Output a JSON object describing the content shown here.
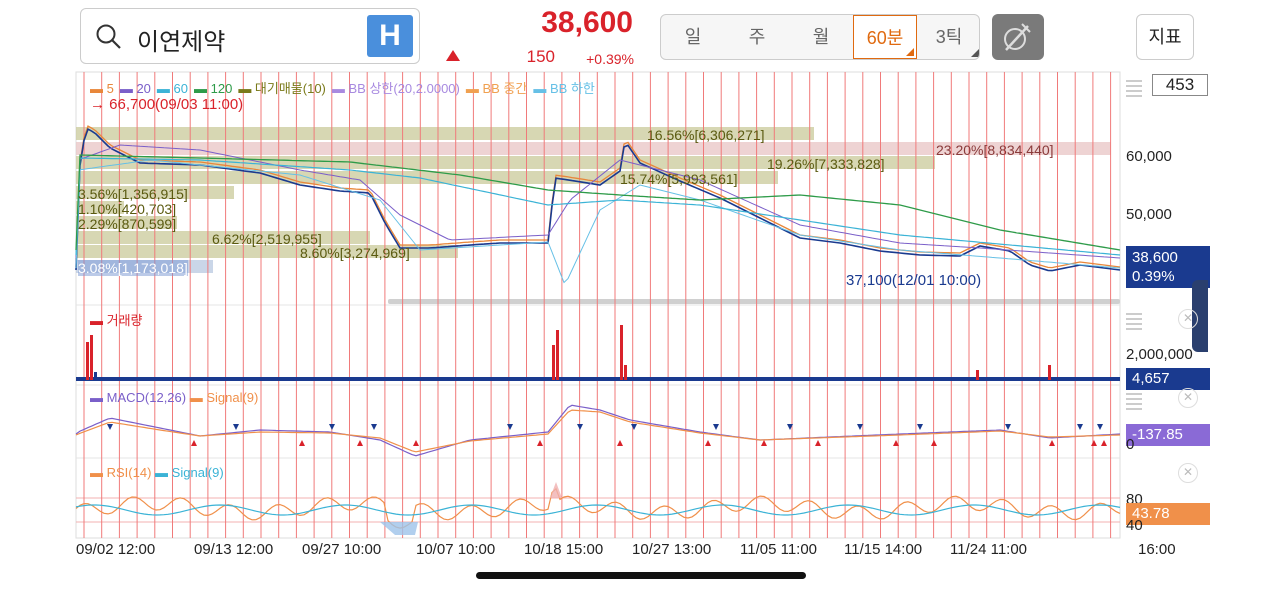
{
  "stock": {
    "name": "이연제약",
    "h_label": "H",
    "price": "38,600",
    "change": "150",
    "change_pct": "+0.39%"
  },
  "periods": [
    "일",
    "주",
    "월",
    "60분",
    "3틱"
  ],
  "selected_period": "60분",
  "indicator_button": "지표",
  "counter": "453",
  "legend_price": [
    {
      "label": "5",
      "color": "#e8873a"
    },
    {
      "label": "20",
      "color": "#7a5fc9"
    },
    {
      "label": "60",
      "color": "#3bb3d6"
    },
    {
      "label": "120",
      "color": "#2e9b49"
    },
    {
      "label": "대기매물(10)",
      "color": "#7a7a1a"
    },
    {
      "label": "BB 상한(20,2.0000)",
      "color": "#a88ae0"
    },
    {
      "label": "BB 중간",
      "color": "#f0a050"
    },
    {
      "label": "BB 하한",
      "color": "#66c0e6"
    }
  ],
  "high_marker": "66,700(09/03 11:00)",
  "low_marker": "37,100(12/01 10:00)",
  "volume_profile": [
    "16.56%[6,306,271]",
    "23.20%[8,834,440]",
    "19.26%[7,333,828]",
    "15.74%[5,993,561]",
    "3.56%[1,356,915]",
    "1.10%[420,703]",
    "2.29%[870,599]",
    "6.62%[2,519,955]",
    "8.60%[3,274,969]",
    "3.08%[1,173,018]"
  ],
  "price_axis": [
    "60,000",
    "50,000"
  ],
  "current_tag": {
    "price": "38,600",
    "pct": "0.39%"
  },
  "volume_panel": {
    "label": "거래량",
    "axis": "2,000,000",
    "tag": "4,657"
  },
  "macd_panel": {
    "label1": "MACD(12,26)",
    "label2": "Signal(9)",
    "axis": "0",
    "tag": "-137.85"
  },
  "rsi_panel": {
    "label1": "RSI(14)",
    "label2": "Signal(9)",
    "axis_hi": "80",
    "axis_lo": "40",
    "tag": "43.78"
  },
  "x_ticks": [
    "09/02 12:00",
    "09/13 12:00",
    "09/27 10:00",
    "10/07 10:00",
    "10/18 15:00",
    "10/27 13:00",
    "11/05 11:00",
    "11/15 14:00",
    "11/24 11:00",
    "16:00"
  ],
  "colors": {
    "up": "#d9222a",
    "down": "#1a3a8f",
    "accent": "#e06a10",
    "tag_blue": "#1a3a8f",
    "tag_purple": "#8a6ad6",
    "tag_orange": "#f0904a"
  }
}
